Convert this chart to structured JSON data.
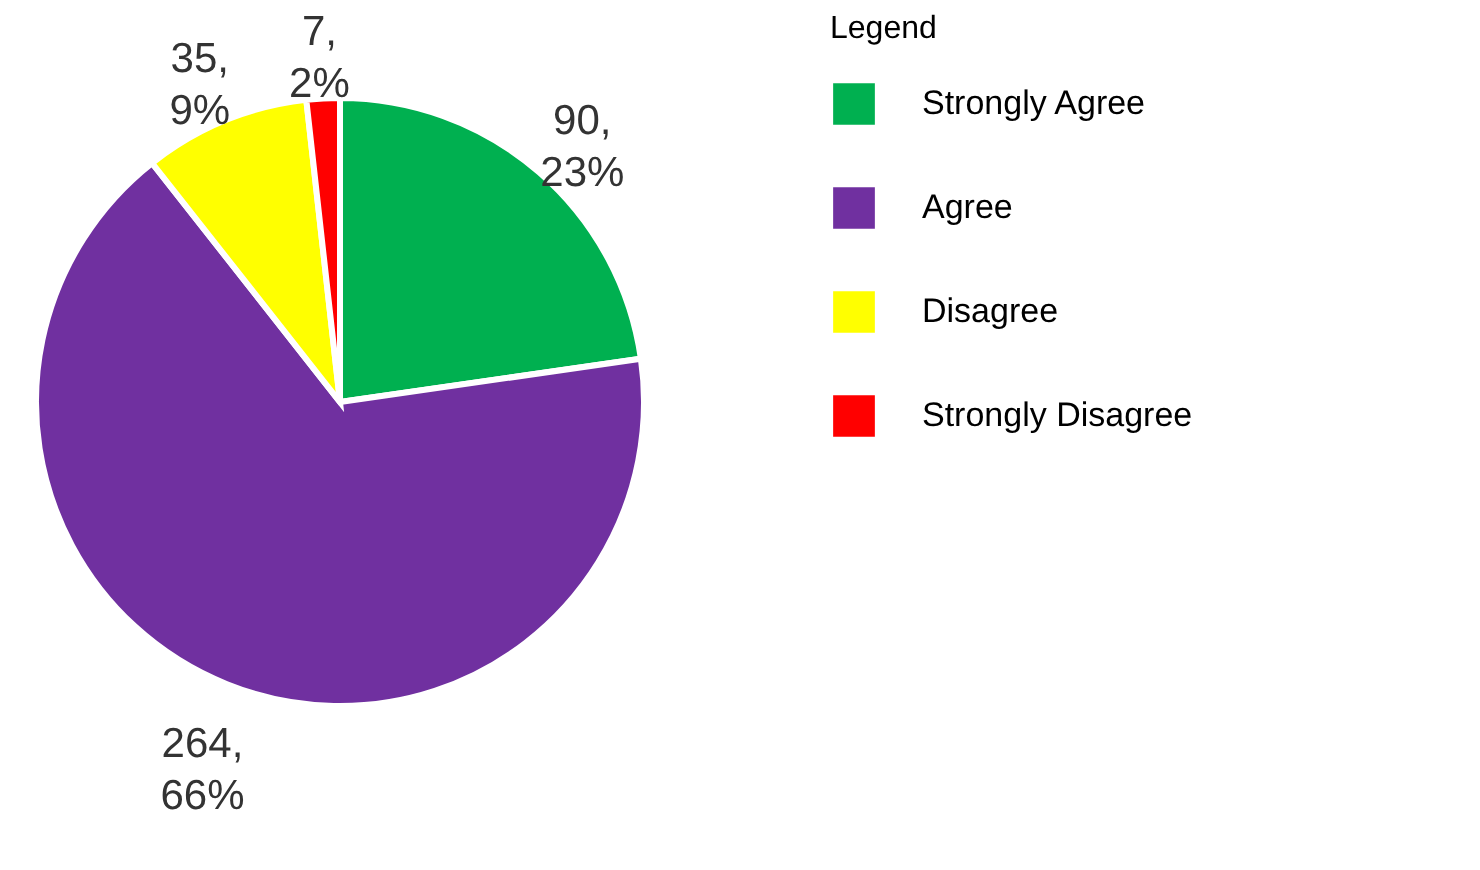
{
  "chart_data": {
    "type": "pie",
    "legend_title": "Legend",
    "legend": "right",
    "categories": [
      "Strongly Agree",
      "Agree",
      "Disagree",
      "Strongly Disagree"
    ],
    "values": [
      90,
      264,
      35,
      7
    ],
    "colors": [
      "#00b050",
      "#7030a0",
      "#ffff00",
      "#ff0000"
    ],
    "value_labels": [
      "90, 23%",
      "264, 66%",
      "35, 9%",
      "7, 2%"
    ]
  }
}
